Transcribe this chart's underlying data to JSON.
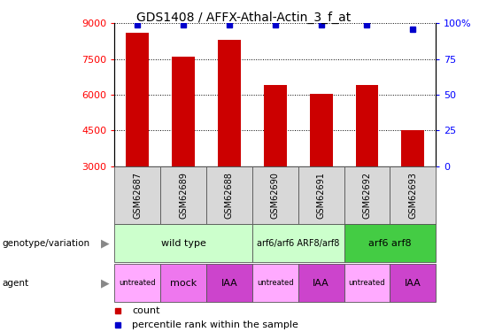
{
  "title": "GDS1408 / AFFX-Athal-Actin_3_f_at",
  "samples": [
    "GSM62687",
    "GSM62689",
    "GSM62688",
    "GSM62690",
    "GSM62691",
    "GSM62692",
    "GSM62693"
  ],
  "counts": [
    8600,
    7600,
    8300,
    6400,
    6050,
    6400,
    4500
  ],
  "percentiles": [
    99,
    99,
    99,
    99,
    99,
    99,
    96
  ],
  "ylim_left": [
    3000,
    9000
  ],
  "ylim_right": [
    0,
    100
  ],
  "yticks_left": [
    3000,
    4500,
    6000,
    7500,
    9000
  ],
  "yticks_right": [
    0,
    25,
    50,
    75,
    100
  ],
  "bar_color": "#cc0000",
  "dot_color": "#0000cc",
  "bar_width": 0.5,
  "genotype_groups": [
    {
      "label": "wild type",
      "start": 0,
      "end": 3,
      "color": "#ccffcc"
    },
    {
      "label": "arf6/arf6 ARF8/arf8",
      "start": 3,
      "end": 5,
      "color": "#ccffcc"
    },
    {
      "label": "arf6 arf8",
      "start": 5,
      "end": 7,
      "color": "#44cc44"
    }
  ],
  "agent_labels": [
    "untreated",
    "mock",
    "IAA",
    "untreated",
    "IAA",
    "untreated",
    "IAA"
  ],
  "agent_colors": [
    "#ffaaff",
    "#ee77ee",
    "#cc44cc",
    "#ffaaff",
    "#cc44cc",
    "#ffaaff",
    "#cc44cc"
  ],
  "legend_count_color": "#cc0000",
  "legend_pct_color": "#0000cc"
}
